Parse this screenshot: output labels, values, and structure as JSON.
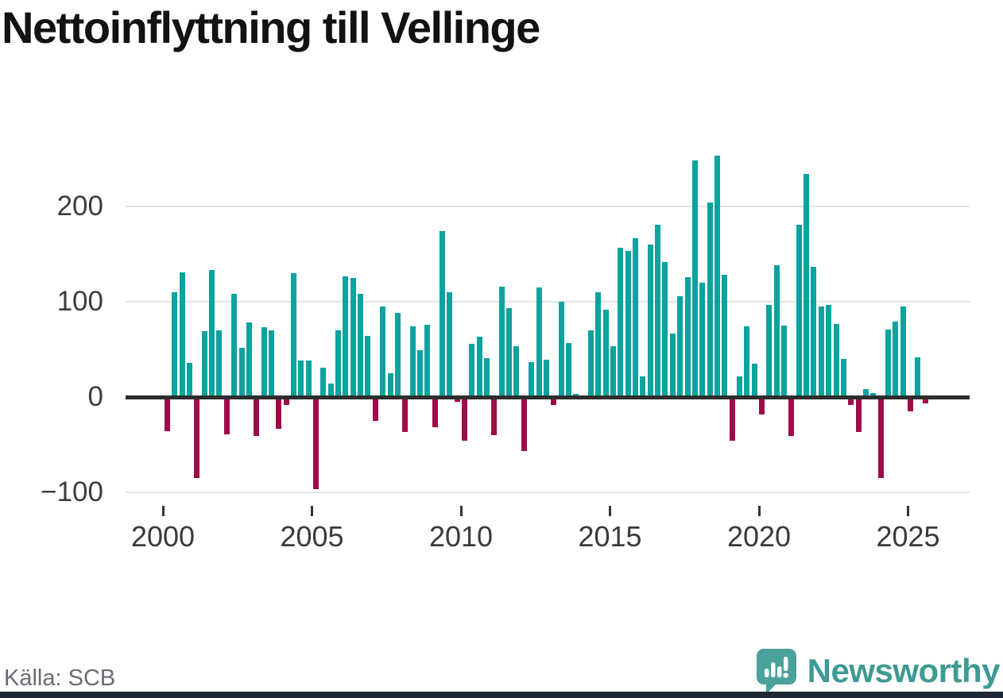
{
  "title": "Nettoinflyttning till Vellinge",
  "source": {
    "label": "Källa: SCB"
  },
  "branding": {
    "name": "Newsworthy",
    "bubble_color": "#4aa29b",
    "text_color": "#3e9a93"
  },
  "chart_data": {
    "type": "bar",
    "title": "Nettoinflyttning till Vellinge",
    "xlabel": "",
    "ylabel": "",
    "x_unit": "quarter",
    "start": "2000-Q1",
    "end": "2025-Q3",
    "ylim": [
      -120,
      270
    ],
    "grid": true,
    "legend": false,
    "y_ticks": [
      200,
      100,
      0,
      -100
    ],
    "y_tick_labels": [
      "200",
      "100",
      "0",
      "−100"
    ],
    "x_tick_labels": [
      "2000",
      "2005",
      "2010",
      "2015",
      "2020",
      "2025"
    ],
    "colors": {
      "positive_bar": "#0aa39e",
      "negative_bar": "#9e0c48",
      "zero_line": "#2e2e2e",
      "gridline": "#e2e2e2"
    },
    "years": [
      {
        "year": 2000,
        "q": [
          -36,
          110,
          131,
          36
        ]
      },
      {
        "year": 2001,
        "q": [
          -85,
          69,
          133,
          70
        ]
      },
      {
        "year": 2002,
        "q": [
          -39,
          108,
          52,
          78
        ]
      },
      {
        "year": 2003,
        "q": [
          -41,
          73,
          70,
          -33
        ]
      },
      {
        "year": 2004,
        "q": [
          -8,
          130,
          38,
          38
        ]
      },
      {
        "year": 2005,
        "q": [
          -97,
          31,
          14,
          70
        ]
      },
      {
        "year": 2006,
        "q": [
          127,
          125,
          108,
          64
        ]
      },
      {
        "year": 2007,
        "q": [
          -25,
          95,
          25,
          88
        ]
      },
      {
        "year": 2008,
        "q": [
          -37,
          74,
          49,
          76
        ]
      },
      {
        "year": 2009,
        "q": [
          -32,
          174,
          110,
          -5
        ]
      },
      {
        "year": 2010,
        "q": [
          -46,
          56,
          63,
          41
        ]
      },
      {
        "year": 2011,
        "q": [
          -40,
          116,
          93,
          53
        ]
      },
      {
        "year": 2012,
        "q": [
          -57,
          37,
          115,
          39
        ]
      },
      {
        "year": 2013,
        "q": [
          -8,
          100,
          57,
          3
        ]
      },
      {
        "year": 2014,
        "q": [
          0,
          70,
          110,
          92
        ]
      },
      {
        "year": 2015,
        "q": [
          53,
          157,
          153,
          167
        ]
      },
      {
        "year": 2016,
        "q": [
          22,
          160,
          181,
          142
        ]
      },
      {
        "year": 2017,
        "q": [
          67,
          106,
          126,
          248
        ]
      },
      {
        "year": 2018,
        "q": [
          120,
          204,
          253,
          128
        ]
      },
      {
        "year": 2019,
        "q": [
          -46,
          22,
          74,
          35
        ]
      },
      {
        "year": 2020,
        "q": [
          -18,
          97,
          138,
          75
        ]
      },
      {
        "year": 2021,
        "q": [
          -41,
          181,
          234,
          137
        ]
      },
      {
        "year": 2022,
        "q": [
          95,
          97,
          77,
          40
        ]
      },
      {
        "year": 2023,
        "q": [
          -8,
          -37,
          8,
          4
        ]
      },
      {
        "year": 2024,
        "q": [
          -85,
          71,
          79,
          95
        ]
      },
      {
        "year": 2025,
        "q": [
          -15,
          42,
          -7
        ]
      }
    ]
  }
}
